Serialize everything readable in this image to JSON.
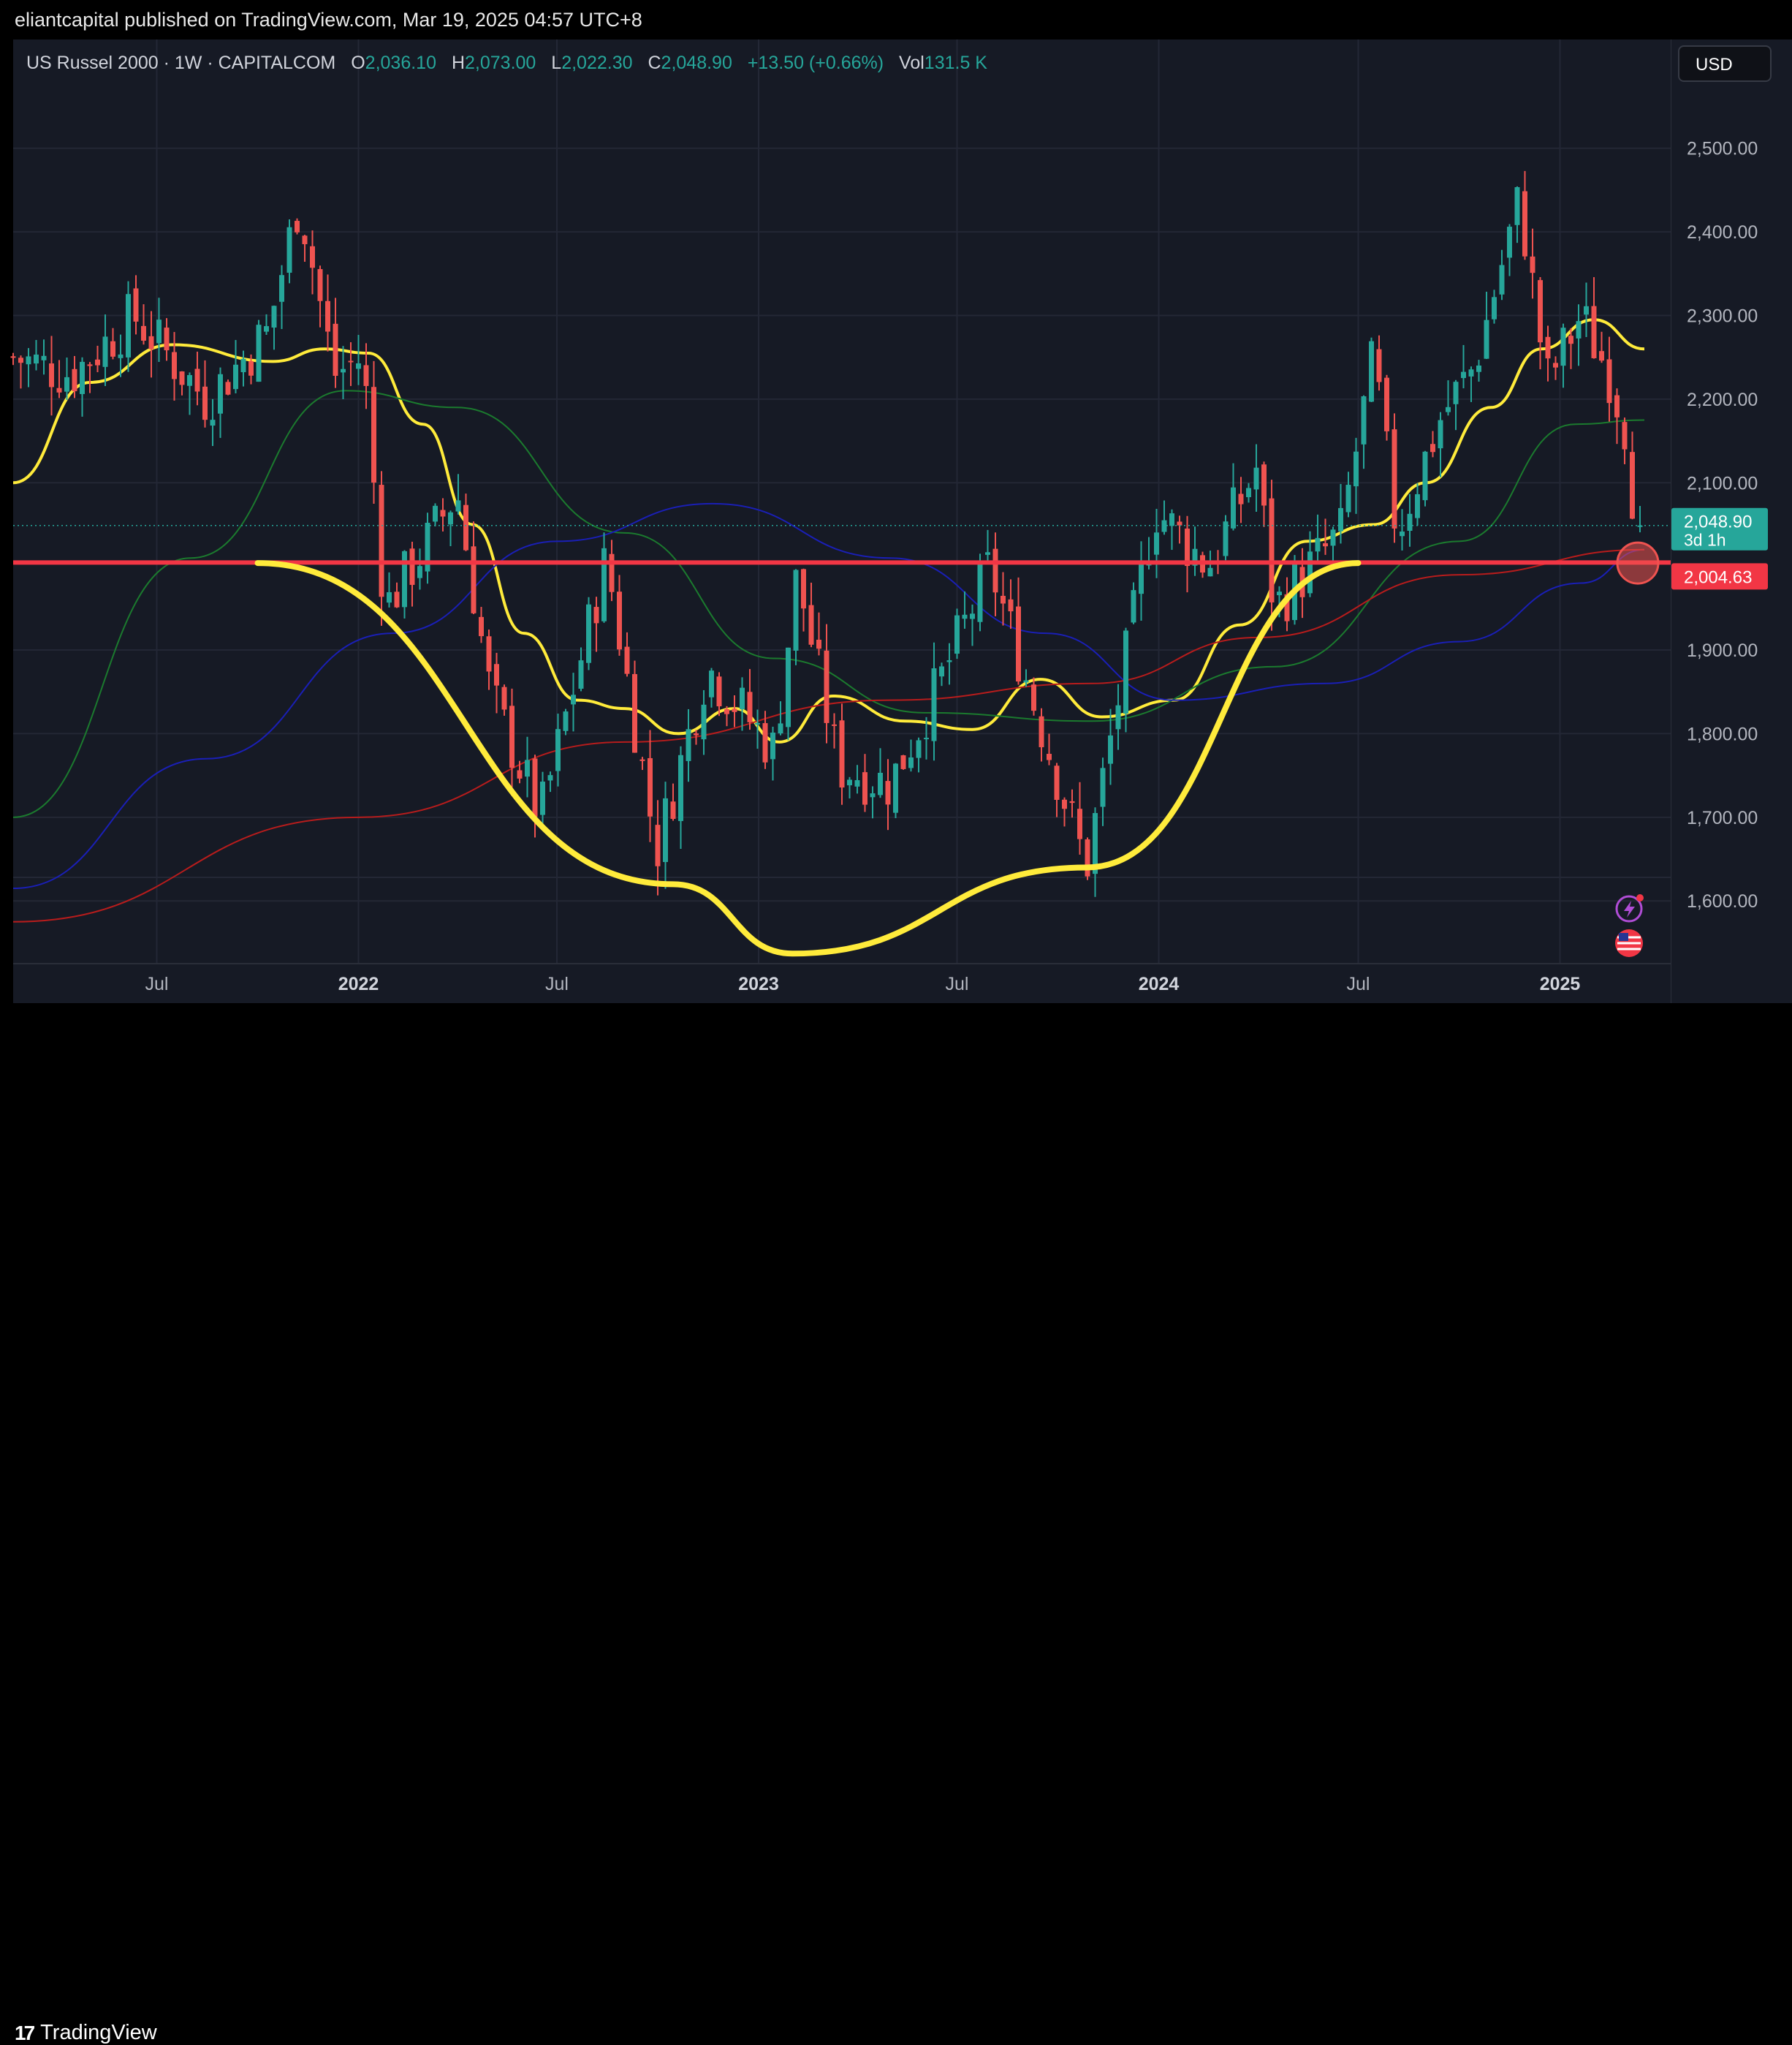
{
  "header": {
    "published": "eliantcapital published on TradingView.com, Mar 19, 2025 04:57 UTC+8"
  },
  "legend": {
    "symbol": "US Russel 2000 · 1W · CAPITALCOM",
    "o_label": "O",
    "o_value": "2,036.10",
    "h_label": "H",
    "h_value": "2,073.00",
    "l_label": "L",
    "l_value": "2,022.30",
    "c_label": "C",
    "c_value": "2,048.90",
    "change": "+13.50 (+0.66%)",
    "vol_label": "Vol",
    "vol_value": "131.5 K"
  },
  "currency_button": "USD",
  "footer": {
    "brand": "TradingView",
    "logo_mark": "17"
  },
  "colors": {
    "bg": "#161a25",
    "up": "#26a69a",
    "down": "#ef5350",
    "ma_fast": "#ffeb3b",
    "ma_green": "#1b7a2e",
    "ma_blue": "#1a1fb5",
    "ma_red": "#b71c1c",
    "support": "#f23645"
  },
  "icons": [
    "lightning-icon",
    "us-flag-icon"
  ],
  "chart_data": {
    "type": "candlestick",
    "title": "US Russel 2000 · 1W · CAPITALCOM",
    "y_ticks": [
      "2,500.00",
      "2,400.00",
      "2,300.00",
      "2,200.00",
      "2,100.00",
      "1,900.00",
      "1,800.00",
      "1,700.00",
      "1,600.00"
    ],
    "y_tick_values": [
      2500,
      2400,
      2300,
      2200,
      2100,
      1900,
      1800,
      1700,
      1600
    ],
    "ylim": [
      1525,
      2630
    ],
    "x_ticks": [
      "Jul",
      "2022",
      "Jul",
      "2023",
      "Jul",
      "2024",
      "Jul",
      "2025"
    ],
    "x_tick_dates": [
      "2021-07-01",
      "2022-01-01",
      "2022-07-01",
      "2023-01-01",
      "2023-07-01",
      "2024-01-01",
      "2024-07-01",
      "2025-01-01"
    ],
    "x_range": [
      "2021-02-20",
      "2025-04-12"
    ],
    "current_price": {
      "value": 2048.9,
      "label": "2,048.90",
      "countdown": "3d 1h"
    },
    "support_level": {
      "value": 2004.63,
      "label": "2,004.63"
    },
    "price_path": [
      {
        "date": "2021-02-20",
        "close": 2250
      },
      {
        "date": "2021-04-15",
        "close": 2230
      },
      {
        "date": "2021-06-10",
        "close": 2300
      },
      {
        "date": "2021-08-15",
        "close": 2200
      },
      {
        "date": "2021-10-10",
        "close": 2280
      },
      {
        "date": "2021-11-08",
        "close": 2440
      },
      {
        "date": "2021-12-10",
        "close": 2230
      },
      {
        "date": "2022-01-05",
        "close": 2250
      },
      {
        "date": "2022-01-25",
        "close": 1950
      },
      {
        "date": "2022-03-01",
        "close": 2020
      },
      {
        "date": "2022-04-01",
        "close": 2090
      },
      {
        "date": "2022-05-01",
        "close": 1850
      },
      {
        "date": "2022-06-16",
        "close": 1700
      },
      {
        "date": "2022-08-15",
        "close": 2010
      },
      {
        "date": "2022-09-30",
        "close": 1660
      },
      {
        "date": "2022-11-15",
        "close": 1880
      },
      {
        "date": "2023-01-15",
        "close": 1780
      },
      {
        "date": "2023-02-05",
        "close": 1990
      },
      {
        "date": "2023-03-15",
        "close": 1760
      },
      {
        "date": "2023-05-01",
        "close": 1740
      },
      {
        "date": "2023-06-15",
        "close": 1860
      },
      {
        "date": "2023-07-31",
        "close": 2000
      },
      {
        "date": "2023-09-01",
        "close": 1870
      },
      {
        "date": "2023-10-27",
        "close": 1640
      },
      {
        "date": "2023-12-28",
        "close": 2070
      },
      {
        "date": "2024-02-15",
        "close": 2000
      },
      {
        "date": "2024-03-31",
        "close": 2120
      },
      {
        "date": "2024-04-15",
        "close": 1950
      },
      {
        "date": "2024-06-15",
        "close": 2040
      },
      {
        "date": "2024-07-15",
        "close": 2250
      },
      {
        "date": "2024-08-05",
        "close": 2040
      },
      {
        "date": "2024-09-15",
        "close": 2180
      },
      {
        "date": "2024-10-15",
        "close": 2240
      },
      {
        "date": "2024-11-25",
        "close": 2440
      },
      {
        "date": "2024-12-20",
        "close": 2220
      },
      {
        "date": "2025-01-20",
        "close": 2300
      },
      {
        "date": "2025-02-15",
        "close": 2230
      },
      {
        "date": "2025-03-01",
        "close": 2170
      },
      {
        "date": "2025-03-13",
        "close": 2035
      },
      {
        "date": "2025-03-19",
        "close": 2048.9
      }
    ],
    "series": [
      {
        "color": "#ffeb3b",
        "points": [
          {
            "date": "2021-02-20",
            "value": 2100
          },
          {
            "date": "2021-05-01",
            "value": 2220
          },
          {
            "date": "2021-07-15",
            "value": 2265
          },
          {
            "date": "2021-10-15",
            "value": 2245
          },
          {
            "date": "2021-12-01",
            "value": 2260
          },
          {
            "date": "2022-01-10",
            "value": 2255
          },
          {
            "date": "2022-03-01",
            "value": 2170
          },
          {
            "date": "2022-04-15",
            "value": 2050
          },
          {
            "date": "2022-06-01",
            "value": 1920
          },
          {
            "date": "2022-07-20",
            "value": 1840
          },
          {
            "date": "2022-09-01",
            "value": 1830
          },
          {
            "date": "2022-10-20",
            "value": 1800
          },
          {
            "date": "2022-12-10",
            "value": 1830
          },
          {
            "date": "2023-01-20",
            "value": 1790
          },
          {
            "date": "2023-03-10",
            "value": 1845
          },
          {
            "date": "2023-05-15",
            "value": 1815
          },
          {
            "date": "2023-07-15",
            "value": 1805
          },
          {
            "date": "2023-09-15",
            "value": 1865
          },
          {
            "date": "2023-11-10",
            "value": 1820
          },
          {
            "date": "2024-01-15",
            "value": 1840
          },
          {
            "date": "2024-03-15",
            "value": 1930
          },
          {
            "date": "2024-05-15",
            "value": 2030
          },
          {
            "date": "2024-07-15",
            "value": 2050
          },
          {
            "date": "2024-09-01",
            "value": 2100
          },
          {
            "date": "2024-10-30",
            "value": 2190
          },
          {
            "date": "2024-12-15",
            "value": 2260
          },
          {
            "date": "2025-02-01",
            "value": 2295
          },
          {
            "date": "2025-03-19",
            "value": 2260
          }
        ]
      },
      {
        "color": "#1b7a2e",
        "points": [
          {
            "date": "2021-02-20",
            "value": 1700
          },
          {
            "date": "2021-08-01",
            "value": 2010
          },
          {
            "date": "2021-12-20",
            "value": 2210
          },
          {
            "date": "2022-04-01",
            "value": 2190
          },
          {
            "date": "2022-09-01",
            "value": 2040
          },
          {
            "date": "2023-01-15",
            "value": 1890
          },
          {
            "date": "2023-06-01",
            "value": 1825
          },
          {
            "date": "2023-11-01",
            "value": 1815
          },
          {
            "date": "2024-04-15",
            "value": 1880
          },
          {
            "date": "2024-10-01",
            "value": 2030
          },
          {
            "date": "2025-01-15",
            "value": 2170
          },
          {
            "date": "2025-03-19",
            "value": 2175
          }
        ]
      },
      {
        "color": "#1a1fb5",
        "points": [
          {
            "date": "2021-02-20",
            "value": 1615
          },
          {
            "date": "2021-08-15",
            "value": 1770
          },
          {
            "date": "2022-02-01",
            "value": 1920
          },
          {
            "date": "2022-07-01",
            "value": 2030
          },
          {
            "date": "2022-11-20",
            "value": 2075
          },
          {
            "date": "2023-05-01",
            "value": 2010
          },
          {
            "date": "2023-09-20",
            "value": 1920
          },
          {
            "date": "2024-01-15",
            "value": 1840
          },
          {
            "date": "2024-06-01",
            "value": 1860
          },
          {
            "date": "2024-10-01",
            "value": 1910
          },
          {
            "date": "2025-01-20",
            "value": 1980
          },
          {
            "date": "2025-03-19",
            "value": 2020
          }
        ]
      },
      {
        "color": "#b71c1c",
        "points": [
          {
            "date": "2021-02-20",
            "value": 1575
          },
          {
            "date": "2022-01-01",
            "value": 1700
          },
          {
            "date": "2022-09-01",
            "value": 1790
          },
          {
            "date": "2023-05-01",
            "value": 1840
          },
          {
            "date": "2023-11-01",
            "value": 1860
          },
          {
            "date": "2024-04-01",
            "value": 1915
          },
          {
            "date": "2024-10-01",
            "value": 1990
          },
          {
            "date": "2025-03-19",
            "value": 2020
          }
        ]
      }
    ],
    "annotations": [
      {
        "type": "horizontal_line",
        "value": 2004.63,
        "color": "#f23645",
        "from": "2021-02-20"
      },
      {
        "type": "rounded_bottom_arc",
        "color": "#ffeb3b",
        "points": [
          {
            "date": "2021-10-01",
            "value": 2004
          },
          {
            "date": "2022-10-15",
            "value": 1620
          },
          {
            "date": "2023-02-01",
            "value": 1537
          },
          {
            "date": "2023-10-27",
            "value": 1640
          },
          {
            "date": "2024-07-01",
            "value": 2004
          }
        ]
      },
      {
        "type": "circle_marker",
        "date": "2025-03-13",
        "value": 2004
      }
    ],
    "grid": true,
    "legend": "top-left"
  }
}
